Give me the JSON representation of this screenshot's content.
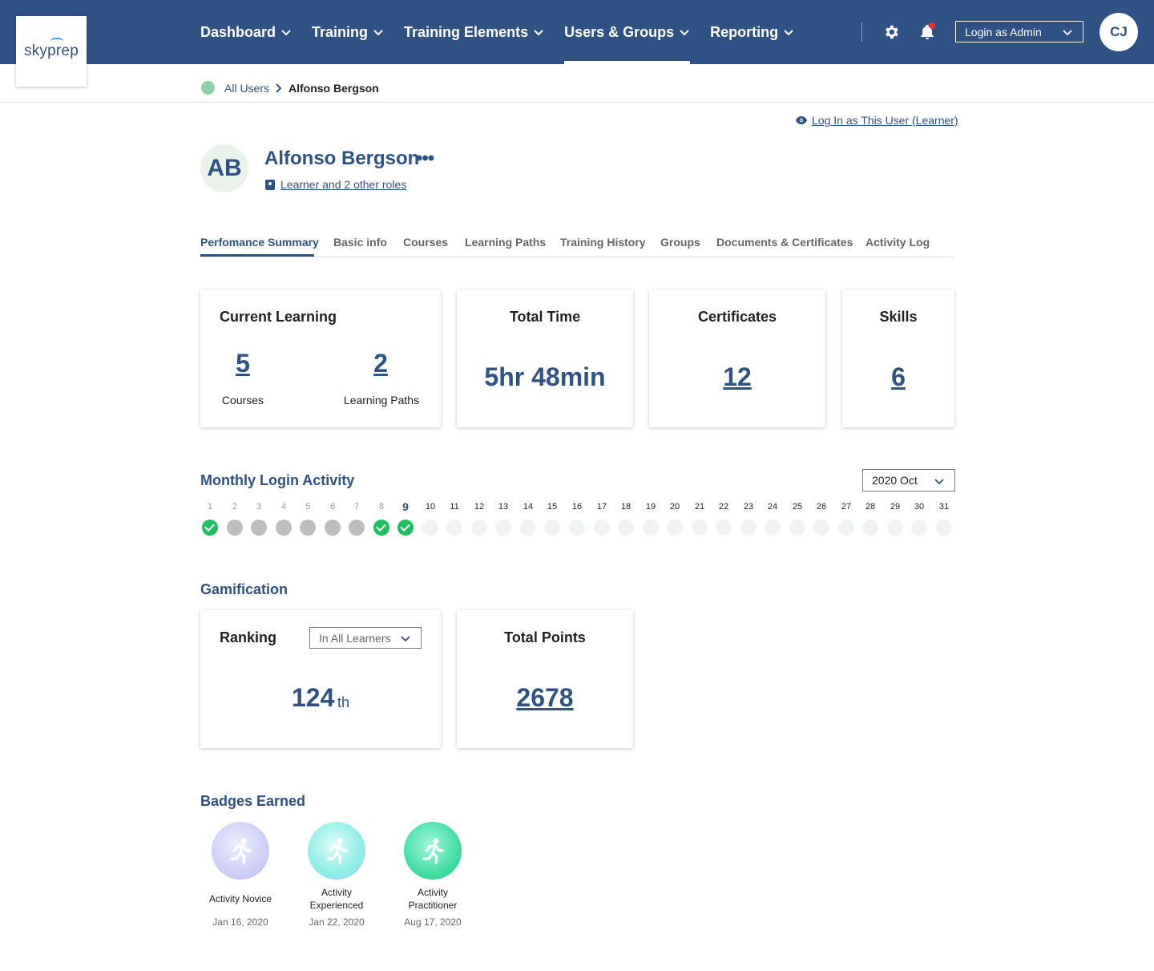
{
  "brand": {
    "logo_text": "skyprep"
  },
  "nav": {
    "items": [
      {
        "label": "Dashboard"
      },
      {
        "label": "Training"
      },
      {
        "label": "Training Elements"
      },
      {
        "label": "Users & Groups",
        "active": true
      },
      {
        "label": "Reporting"
      }
    ],
    "admin_select": "Login as Admin",
    "user_initials": "CJ"
  },
  "breadcrumb": {
    "parent": "All Users",
    "current": "Alfonso Bergson"
  },
  "profile": {
    "login_as_link": "Log In as This User (Learner)",
    "initials": "AB",
    "name": "Alfonso Bergson",
    "more": "•••",
    "roles_link": "Learner and 2 other roles"
  },
  "tabs": [
    {
      "label": "Perfomance Summary",
      "active": true
    },
    {
      "label": "Basic info"
    },
    {
      "label": "Courses"
    },
    {
      "label": "Learning Paths"
    },
    {
      "label": "Training History"
    },
    {
      "label": "Groups"
    },
    {
      "label": "Documents & Certificates"
    },
    {
      "label": "Activity Log"
    }
  ],
  "summary": {
    "current_learning": {
      "title": "Current Learning",
      "courses_value": "5",
      "courses_label": "Courses",
      "paths_value": "2",
      "paths_label": "Learning Paths"
    },
    "total_time": {
      "title": "Total Time",
      "value": "5hr 48min"
    },
    "certificates": {
      "title": "Certificates",
      "value": "12"
    },
    "skills": {
      "title": "Skills",
      "value": "6"
    }
  },
  "login_activity": {
    "title": "Monthly Login Activity",
    "month": "2020 Oct",
    "today": 9,
    "days": [
      {
        "day": "1",
        "status": "login"
      },
      {
        "day": "2",
        "status": "none"
      },
      {
        "day": "3",
        "status": "none"
      },
      {
        "day": "4",
        "status": "none"
      },
      {
        "day": "5",
        "status": "none"
      },
      {
        "day": "6",
        "status": "none"
      },
      {
        "day": "7",
        "status": "none"
      },
      {
        "day": "8",
        "status": "login"
      },
      {
        "day": "9",
        "status": "login"
      },
      {
        "day": "10",
        "status": "future"
      },
      {
        "day": "11",
        "status": "future"
      },
      {
        "day": "12",
        "status": "future"
      },
      {
        "day": "13",
        "status": "future"
      },
      {
        "day": "14",
        "status": "future"
      },
      {
        "day": "15",
        "status": "future"
      },
      {
        "day": "16",
        "status": "future"
      },
      {
        "day": "17",
        "status": "future"
      },
      {
        "day": "18",
        "status": "future"
      },
      {
        "day": "19",
        "status": "future"
      },
      {
        "day": "20",
        "status": "future"
      },
      {
        "day": "21",
        "status": "future"
      },
      {
        "day": "22",
        "status": "future"
      },
      {
        "day": "23",
        "status": "future"
      },
      {
        "day": "24",
        "status": "future"
      },
      {
        "day": "25",
        "status": "future"
      },
      {
        "day": "26",
        "status": "future"
      },
      {
        "day": "27",
        "status": "future"
      },
      {
        "day": "28",
        "status": "future"
      },
      {
        "day": "29",
        "status": "future"
      },
      {
        "day": "30",
        "status": "future"
      },
      {
        "day": "31",
        "status": "future"
      }
    ]
  },
  "gamification": {
    "title": "Gamification",
    "ranking": {
      "title": "Ranking",
      "filter": "In All Learners",
      "value": "124",
      "suffix": "th"
    },
    "points": {
      "title": "Total Points",
      "value": "2678"
    }
  },
  "badges": {
    "title": "Badges Earned",
    "items": [
      {
        "name": "Activity Novice",
        "date": "Jan 16, 2020",
        "color": "#c9c9f6"
      },
      {
        "name": "Activity Experienced",
        "date": "Jan 22, 2020",
        "color": "#8eeee6"
      },
      {
        "name": "Activity Practitioner",
        "date": "Aug 17, 2020",
        "color": "#3fdba0"
      }
    ]
  },
  "colors": {
    "primary": "#2f5285",
    "login_green": "#1cc05e",
    "notification_red": "#e8322e"
  }
}
